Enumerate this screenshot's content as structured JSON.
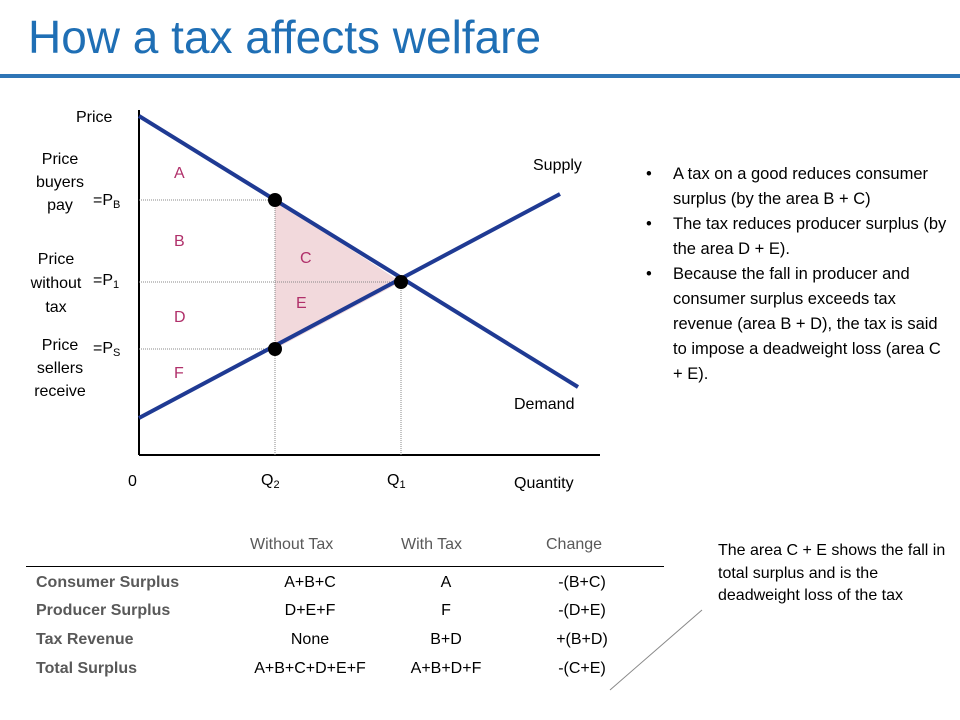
{
  "title": "How a tax affects welfare",
  "diagram": {
    "y_axis_label": "Price",
    "x_axis_label": "Quantity",
    "origin_label": "0",
    "supply_label": "Supply",
    "demand_label": "Demand",
    "price_buyers_pay_label": [
      "Price",
      "buyers",
      "pay"
    ],
    "price_without_tax_label": [
      "Price",
      "without",
      "tax"
    ],
    "price_sellers_receive_label": [
      "Price",
      "sellers",
      "receive"
    ],
    "pb_label": "=P",
    "pb_sub": "B",
    "p1_label": "=P",
    "p1_sub": "1",
    "ps_label": "=P",
    "ps_sub": "S",
    "q2_label": "Q",
    "q2_sub": "2",
    "q1_label": "Q",
    "q1_sub": "1",
    "areas": {
      "a": "A",
      "b": "B",
      "c": "C",
      "d": "D",
      "e": "E",
      "f": "F"
    },
    "colors": {
      "curve": "#1f3a93",
      "area_fill": "#f2d9dc",
      "area_label": "#b0306a",
      "title": "#1f6fb5"
    }
  },
  "bullets": [
    "A tax on a good reduces consumer surplus (by the area B + C)",
    "The tax reduces producer surplus (by the area D + E).",
    "Because the fall in producer and consumer surplus exceeds tax revenue (area B + D), the tax is said to impose a deadweight loss (area C + E)."
  ],
  "note": "The area C + E shows the fall in total surplus and is the deadweight loss of the tax",
  "table": {
    "headers": [
      "Without Tax",
      "With Tax",
      "Change"
    ],
    "rows": [
      {
        "label": "Consumer Surplus",
        "without": "A+B+C",
        "with": "A",
        "change": "-(B+C)"
      },
      {
        "label": "Producer Surplus",
        "without": "D+E+F",
        "with": "F",
        "change": "-(D+E)"
      },
      {
        "label": "Tax Revenue",
        "without": "None",
        "with": "B+D",
        "change": "+(B+D)"
      },
      {
        "label": "Total Surplus",
        "without": "A+B+C+D+E+F",
        "with": "A+B+D+F",
        "change": "-(C+E)"
      }
    ]
  }
}
